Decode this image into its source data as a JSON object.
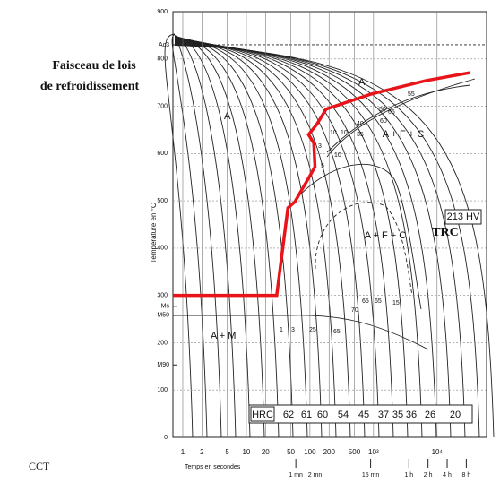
{
  "chart_data": {
    "type": "line",
    "xscale": "log",
    "xlabel": "Temps en secondes",
    "ylabel": "Température en °C",
    "xlim": [
      0.7,
      60000
    ],
    "ylim": [
      0,
      900
    ],
    "xticks": [
      1,
      2,
      5,
      10,
      20,
      50,
      100,
      200,
      500,
      {
        "value": 1000,
        "label": "10³"
      },
      {
        "value": 10000,
        "label": "10⁴"
      }
    ],
    "time_ticks": [
      {
        "value": 60,
        "label": "1 mn"
      },
      {
        "value": 120,
        "label": "2 mn"
      },
      {
        "value": 900,
        "label": "15 mn"
      },
      {
        "value": 3600,
        "label": "1 h"
      },
      {
        "value": 7200,
        "label": "2 h"
      },
      {
        "value": 14400,
        "label": "4 h"
      },
      {
        "value": 28800,
        "label": "8 h"
      }
    ],
    "yticks": [
      0,
      100,
      200,
      300,
      400,
      500,
      600,
      700,
      800,
      900
    ],
    "point_ticks": [
      {
        "value": 830,
        "label": "Ac3"
      },
      {
        "value": 277,
        "label": "Ms"
      },
      {
        "value": 258,
        "label": "M50"
      },
      {
        "value": 153,
        "label": "M90"
      }
    ],
    "grid": true,
    "series": [
      {
        "name": "Faisceau de lois de refroidissement",
        "color": "#e8141a",
        "x": [
          0.7,
          30,
          45,
          58,
          100,
          120,
          115,
          95,
          127,
          180,
          930,
          6600,
          33000
        ],
        "values": [
          300,
          300,
          485,
          498,
          553,
          572,
          622,
          640,
          661,
          694,
          726,
          754,
          771
        ]
      }
    ],
    "annotations": [
      "Faisceau de lois",
      "de refroidissement",
      "TRC",
      "CCT",
      "A",
      "A + F + C",
      "A + F + C",
      "A + M",
      "213 HV",
      "A"
    ],
    "hrc_label": "HRC",
    "hrc": [
      "62",
      "61",
      "60",
      "54",
      "45",
      "37",
      "35",
      "36",
      "26",
      "20"
    ],
    "curve_labels": [
      "1",
      "3",
      "25",
      "65",
      "70",
      "65",
      "65",
      "15",
      "10",
      "10",
      "40",
      "35",
      "60",
      "65",
      "3",
      "5",
      "10",
      "50",
      "55"
    ]
  }
}
